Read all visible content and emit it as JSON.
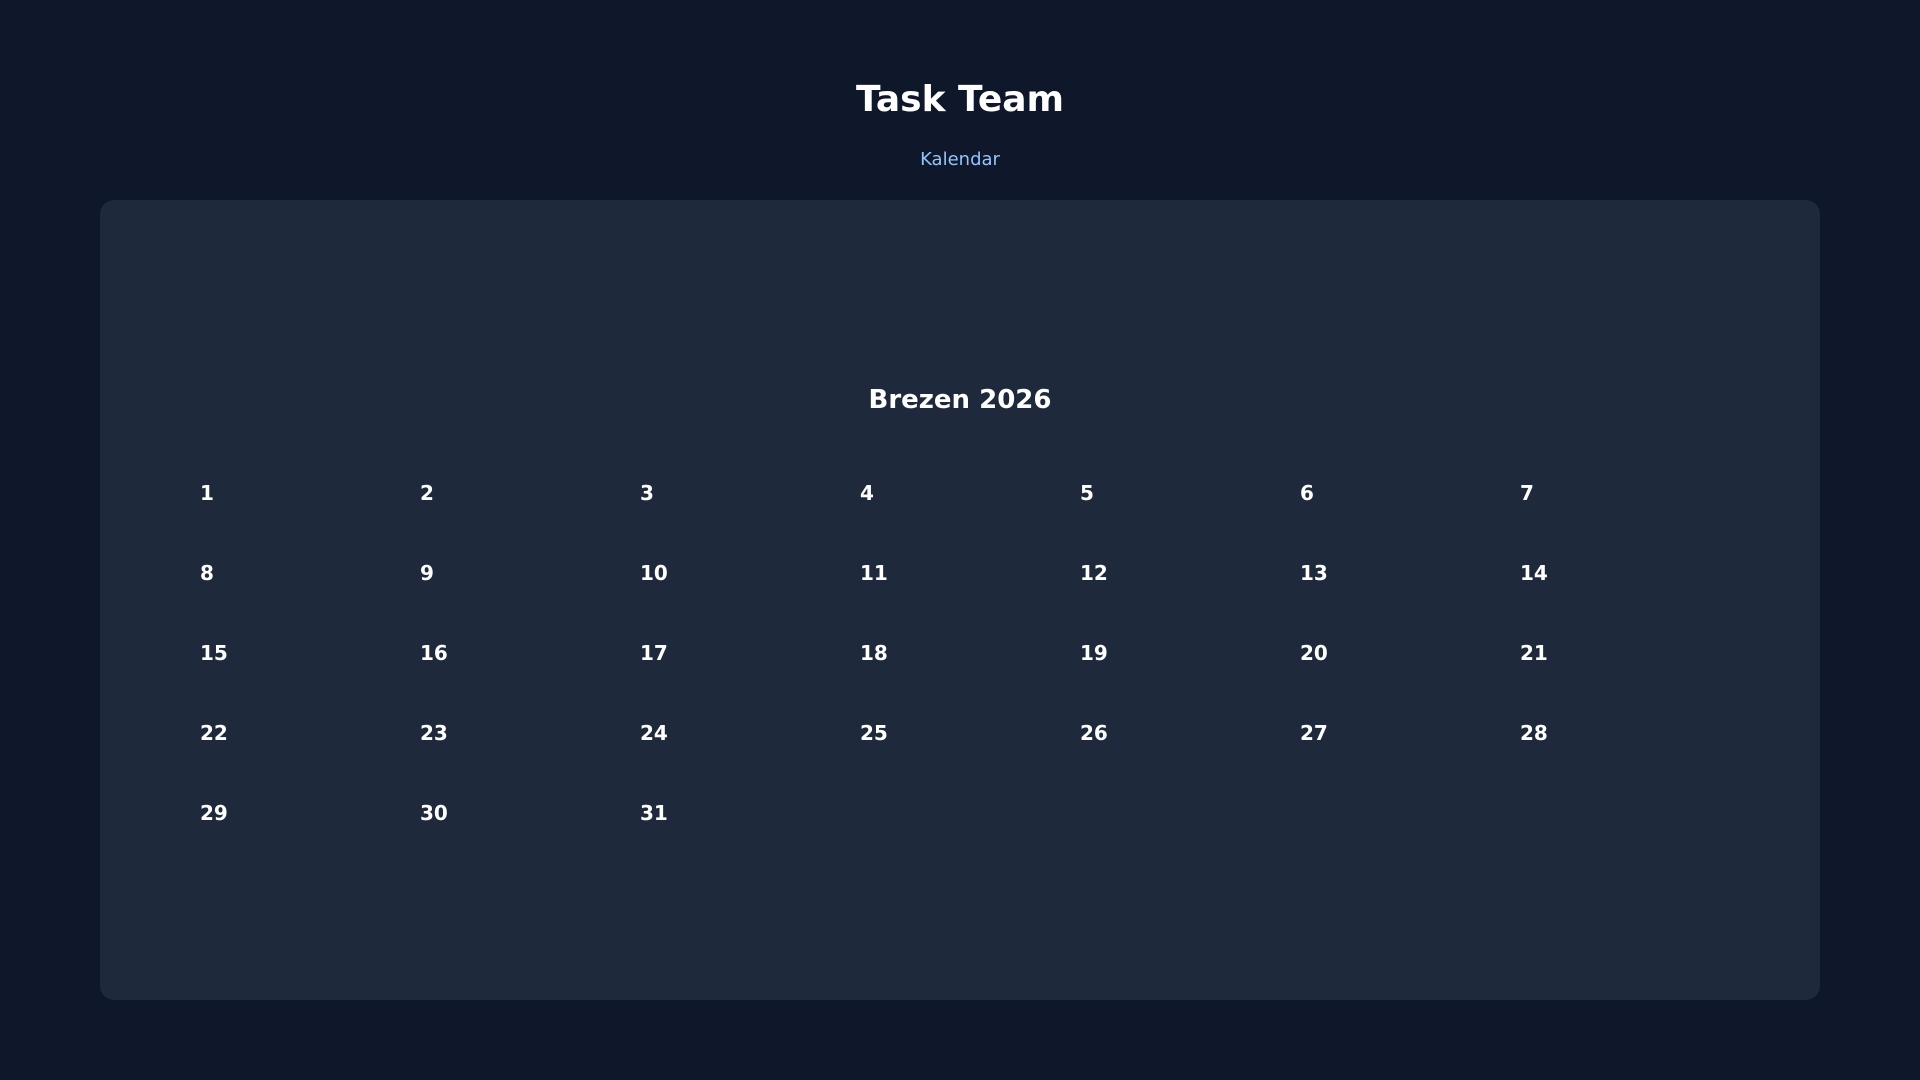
{
  "header": {
    "title": "Task Team",
    "subtitle": "Kalendar"
  },
  "calendar": {
    "month_label": "Brezen 2026",
    "days": [
      "1",
      "2",
      "3",
      "4",
      "5",
      "6",
      "7",
      "8",
      "9",
      "10",
      "11",
      "12",
      "13",
      "14",
      "15",
      "16",
      "17",
      "18",
      "19",
      "20",
      "21",
      "22",
      "23",
      "24",
      "25",
      "26",
      "27",
      "28",
      "29",
      "30",
      "31"
    ]
  },
  "colors": {
    "background": "#0f172a",
    "card": "#1e293b",
    "accent": "#93c5fd",
    "text": "#ffffff"
  }
}
